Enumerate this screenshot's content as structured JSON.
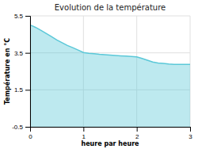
{
  "chart_data": {
    "type": "area",
    "title": "Evolution de la température",
    "xlabel": "heure par heure",
    "ylabel": "Température en °C",
    "x": [
      0,
      0.05,
      0.1,
      0.2,
      0.3,
      0.4,
      0.5,
      0.6,
      0.7,
      0.8,
      0.9,
      1.0,
      1.1,
      1.2,
      1.3,
      1.4,
      1.5,
      1.6,
      1.7,
      1.8,
      1.9,
      2.0,
      2.1,
      2.2,
      2.3,
      2.4,
      2.5,
      2.6,
      2.7,
      2.8,
      2.9,
      3.0
    ],
    "values": [
      5.0,
      4.95,
      4.88,
      4.72,
      4.55,
      4.38,
      4.2,
      4.05,
      3.9,
      3.78,
      3.65,
      3.52,
      3.48,
      3.45,
      3.42,
      3.4,
      3.38,
      3.36,
      3.34,
      3.32,
      3.3,
      3.28,
      3.2,
      3.1,
      3.0,
      2.95,
      2.93,
      2.9,
      2.88,
      2.87,
      2.87,
      2.87
    ],
    "color": "#5bc8d8",
    "xlim": [
      0,
      3
    ],
    "ylim": [
      -0.5,
      5.5
    ],
    "xticks": [
      0,
      1,
      2,
      3
    ],
    "yticks": [
      -0.5,
      1.5,
      3.5,
      5.5
    ],
    "grid": true
  }
}
